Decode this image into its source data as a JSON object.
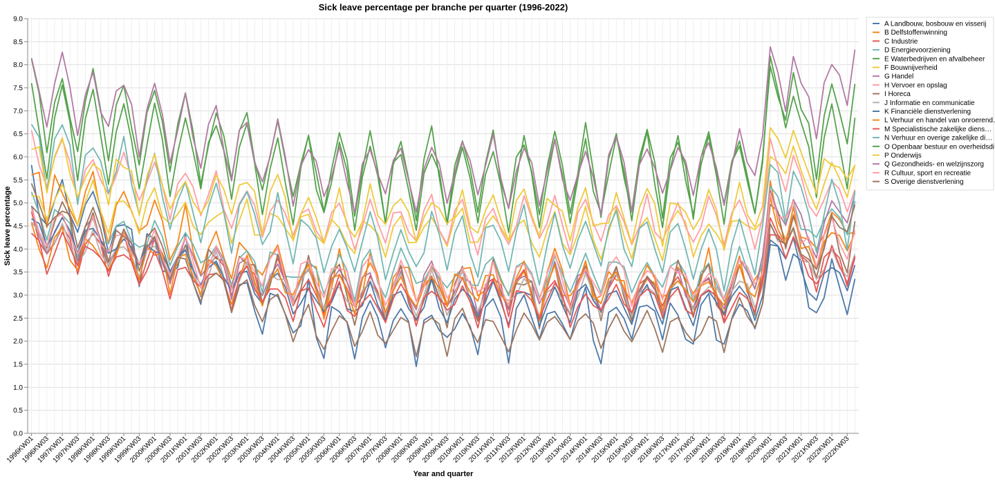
{
  "chart_data": {
    "type": "line",
    "title": "Sick leave percentage per branche per quarter (1996-2022)",
    "xlabel": "Year and quarter",
    "ylabel": "Sick leave percentage",
    "ylim": [
      0,
      9
    ],
    "yticks": [
      "0.0",
      "0.5",
      "1.0",
      "1.5",
      "2.0",
      "2.5",
      "3.0",
      "3.5",
      "4.0",
      "4.5",
      "5.0",
      "5.5",
      "6.0",
      "6.5",
      "7.0",
      "7.5",
      "8.0",
      "8.5",
      "9.0"
    ],
    "x_start_year": 1996,
    "x_end_year": 2022,
    "grid": true,
    "legend_position": "right",
    "legend_box": true,
    "series": [
      {
        "name": "A Landbouw, bosbouw en visserij",
        "color": "#4c78a8",
        "start": 5.0,
        "amp": 0.6,
        "phase": 0,
        "end": 3.3,
        "mid": 2.3,
        "noise": 0.35
      },
      {
        "name": "B Delfstoffenwinning",
        "color": "#f58518",
        "start": 5.3,
        "amp": 0.5,
        "phase": 0.6,
        "end": 4.6,
        "mid": 3.2,
        "noise": 0.4
      },
      {
        "name": "C Industrie",
        "color": "#e45756",
        "start": 4.2,
        "amp": 0.45,
        "phase": 0.2,
        "end": 3.8,
        "mid": 3.0,
        "noise": 0.2
      },
      {
        "name": "D Energievoorziening",
        "color": "#72b7b2",
        "start": 4.6,
        "amp": 0.4,
        "phase": 0.4,
        "end": 4.9,
        "mid": 3.4,
        "noise": 0.25
      },
      {
        "name": "E Waterbedrijven en afvalbeheer",
        "color": "#54a24b",
        "start": 6.6,
        "amp": 0.9,
        "phase": 0,
        "end": 7.1,
        "mid": 5.4,
        "noise": 0.25
      },
      {
        "name": "F Bouwnijverheid",
        "color": "#eeca3b",
        "start": 5.0,
        "amp": 0.4,
        "phase": 0.3,
        "end": 5.8,
        "mid": 4.3,
        "noise": 0.25
      },
      {
        "name": "G Handel",
        "color": "#b279a2",
        "start": 4.4,
        "amp": 0.45,
        "phase": 0.1,
        "end": 4.9,
        "mid": 3.1,
        "noise": 0.2
      },
      {
        "name": "H Vervoer en opslag",
        "color": "#ff9da6",
        "start": 5.9,
        "amp": 0.5,
        "phase": 0.2,
        "end": 5.2,
        "mid": 4.5,
        "noise": 0.2
      },
      {
        "name": "I Horeca",
        "color": "#9d755d",
        "start": 4.6,
        "amp": 0.5,
        "phase": 0.5,
        "end": 4.3,
        "mid": 3.0,
        "noise": 0.3
      },
      {
        "name": "J Informatie en communicatie",
        "color": "#bab0ac",
        "start": 4.2,
        "amp": 0.35,
        "phase": 0.3,
        "end": 3.8,
        "mid": 3.0,
        "noise": 0.2
      },
      {
        "name": "K Financiële dienstverlening",
        "color": "#4c78a8",
        "start": 4.5,
        "amp": 0.35,
        "phase": 0.2,
        "end": 3.4,
        "mid": 2.8,
        "noise": 0.2
      },
      {
        "name": "L Verhuur en handel van onroerend goed",
        "color": "#f58518",
        "start": 4.1,
        "amp": 0.4,
        "phase": 0.4,
        "end": 4.4,
        "mid": 3.1,
        "noise": 0.25
      },
      {
        "name": "M Specialistische zakelijke diensten",
        "color": "#e45756",
        "start": 4.0,
        "amp": 0.35,
        "phase": 0.2,
        "end": 3.8,
        "mid": 2.8,
        "noise": 0.2
      },
      {
        "name": "N Verhuur en overige zakelijke diensten",
        "color": "#72b7b2",
        "start": 6.2,
        "amp": 0.7,
        "phase": 0.1,
        "end": 4.8,
        "mid": 4.0,
        "noise": 0.3
      },
      {
        "name": "O Openbaar bestuur en overheidsdiensten",
        "color": "#54a24b",
        "start": 7.2,
        "amp": 0.9,
        "phase": 0,
        "end": 6.4,
        "mid": 5.6,
        "noise": 0.25
      },
      {
        "name": "P Onderwijs",
        "color": "#eeca3b",
        "start": 5.9,
        "amp": 0.5,
        "phase": 0.7,
        "end": 5.8,
        "mid": 4.7,
        "noise": 0.3
      },
      {
        "name": "Q Gezondheids- en welzijnszorg",
        "color": "#b279a2",
        "start": 7.6,
        "amp": 0.7,
        "phase": 0,
        "end": 8.0,
        "mid": 5.6,
        "noise": 0.25
      },
      {
        "name": "R Cultuur, sport en recreatie",
        "color": "#ff9da6",
        "start": 4.4,
        "amp": 0.4,
        "phase": 0.3,
        "end": 4.4,
        "mid": 3.3,
        "noise": 0.25
      },
      {
        "name": "S Overige dienstverlening",
        "color": "#9d755d",
        "start": 4.9,
        "amp": 0.4,
        "phase": 0.5,
        "end": 4.7,
        "mid": 2.2,
        "noise": 0.2
      }
    ]
  }
}
